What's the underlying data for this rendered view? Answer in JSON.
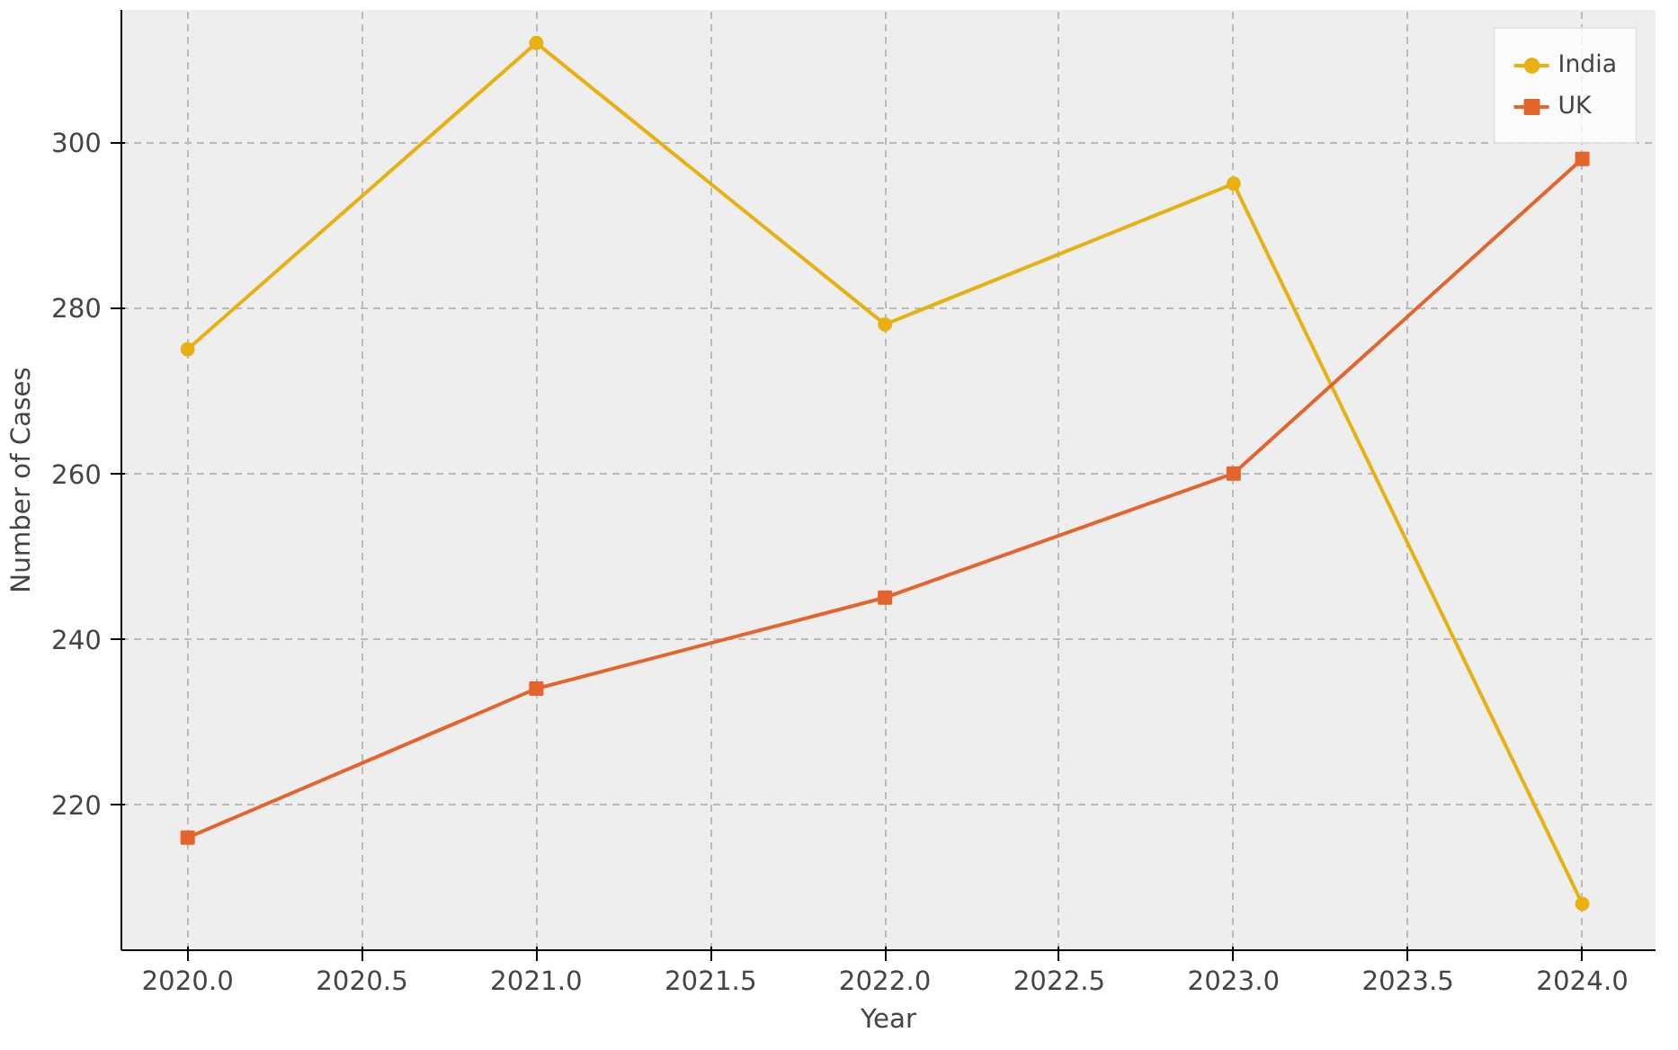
{
  "chart_data": {
    "type": "line",
    "xlabel": "Year",
    "ylabel": "Number of Cases",
    "x": [
      2020,
      2021,
      2022,
      2023,
      2024
    ],
    "series": [
      {
        "name": "India",
        "color": "#e8b010",
        "values": [
          275,
          312,
          278,
          295,
          208
        ],
        "marker": "circle"
      },
      {
        "name": "UK",
        "color": "#e4642c",
        "values": [
          216,
          234,
          245,
          260,
          298
        ],
        "marker": "square"
      }
    ],
    "xlim": [
      2019.81,
      2024.21
    ],
    "ylim": [
      202.4,
      316
    ],
    "xticks": [
      {
        "value": 2020,
        "label": "2020.0"
      },
      {
        "value": 2020.5,
        "label": "2020.5"
      },
      {
        "value": 2021,
        "label": "2021.0"
      },
      {
        "value": 2021.5,
        "label": "2021.5"
      },
      {
        "value": 2022,
        "label": "2022.0"
      },
      {
        "value": 2022.5,
        "label": "2022.5"
      },
      {
        "value": 2023,
        "label": "2023.0"
      },
      {
        "value": 2023.5,
        "label": "2023.5"
      },
      {
        "value": 2024,
        "label": "2024.0"
      }
    ],
    "yticks": [
      220,
      240,
      260,
      280,
      300
    ],
    "grid": true,
    "legend": "top right",
    "line_style": "solid"
  }
}
